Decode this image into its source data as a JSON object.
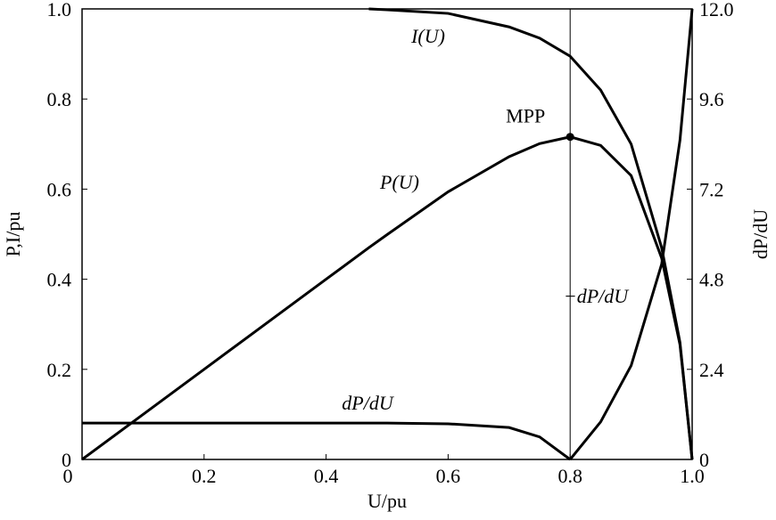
{
  "chart_data": {
    "type": "line",
    "x_label": "U/pu",
    "y_label": "P,I/pu",
    "y2_label": "dP/dU",
    "x": [
      0,
      0.1,
      0.2,
      0.3,
      0.4,
      0.47,
      0.5,
      0.6,
      0.7,
      0.75,
      0.8,
      0.85,
      0.9,
      0.95,
      0.98,
      1.0
    ],
    "series": [
      {
        "name": "I(U)",
        "color": "#000000",
        "values": [
          null,
          null,
          null,
          null,
          null,
          1.0,
          0.998,
          0.99,
          0.96,
          0.935,
          0.895,
          0.82,
          0.7,
          0.47,
          0.26,
          0
        ]
      },
      {
        "name": "P(U)",
        "color": "#000000",
        "values": [
          0,
          0.1,
          0.2,
          0.3,
          0.4,
          0.47,
          0.499,
          0.594,
          0.672,
          0.701,
          0.716,
          0.697,
          0.63,
          0.447,
          0.255,
          0
        ]
      },
      {
        "name": "dP/dU",
        "color": "#000000",
        "axis": "y2",
        "values": [
          0.97,
          0.97,
          0.97,
          0.97,
          0.97,
          0.97,
          0.97,
          0.95,
          0.85,
          0.6,
          0,
          null,
          null,
          null,
          null,
          null
        ]
      },
      {
        "name": "−dP/dU",
        "color": "#000000",
        "axis": "y2",
        "values": [
          null,
          null,
          null,
          null,
          null,
          null,
          null,
          null,
          null,
          null,
          0,
          1.0,
          2.5,
          5.2,
          8.5,
          12
        ]
      }
    ],
    "mpp": {
      "label": "MPP",
      "x": 0.8,
      "y": 0.716
    },
    "xlim": [
      0,
      1.0
    ],
    "ylim": [
      0,
      1.0
    ],
    "y2lim": [
      0,
      12
    ],
    "xticks": [
      0,
      0.2,
      0.4,
      0.6,
      {
        "value": 0.8,
        "label": "0.8"
      },
      {
        "value": 1,
        "label": "1.0"
      }
    ],
    "yticks": [
      0,
      0.2,
      0.4,
      0.6,
      0.8,
      {
        "value": 1,
        "label": "1.0"
      }
    ],
    "y2ticks": [
      0,
      2.4,
      4.8,
      7.2,
      9.6,
      {
        "value": 12,
        "label": "12.0"
      }
    ],
    "grid": false
  }
}
